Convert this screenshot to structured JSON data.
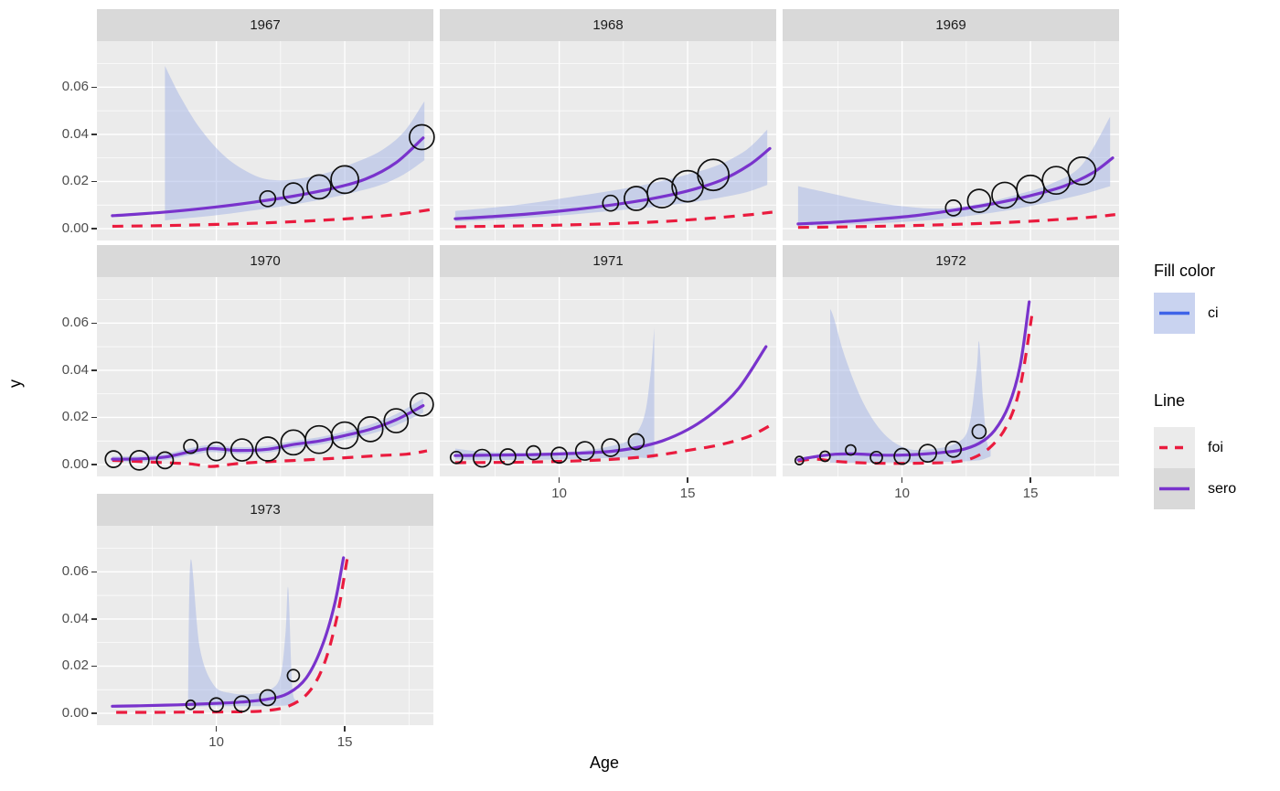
{
  "figure": {
    "y_axis_title": "y",
    "x_axis_title": "Age"
  },
  "legend": {
    "fill_title": "Fill color",
    "fill_items": [
      {
        "label": "ci"
      }
    ],
    "line_title": "Line",
    "line_items": [
      {
        "label": "foi",
        "style": "dashed"
      },
      {
        "label": "sero",
        "style": "solid"
      }
    ]
  },
  "colors": {
    "panel_bg": "#EBEBEB",
    "strip_bg": "#D9D9D9",
    "grid": "#FFFFFF",
    "ribbon_fill": "#A4B4E6",
    "ribbon_opacity": 0.5,
    "sero_line": "#7933CC",
    "foi_line": "#EA1B3E",
    "ci_legend_line": "#3E63E8",
    "point_stroke": "#101010",
    "axis_text": "#4D4D4D",
    "strip_text": "#1A1A1A"
  },
  "chart_data": {
    "type": "line",
    "subtype": "faceted-ribbon-line-bubble",
    "xlabel": "Age",
    "ylabel": "y",
    "x_domain": [
      5.35,
      18.45
    ],
    "y_domain": [
      -0.00503,
      0.07953
    ],
    "x_major_ticks": [
      10,
      15
    ],
    "x_tick_labels": [
      "10",
      "15"
    ],
    "x_minor_ticks": [
      7.5,
      12.5,
      17.5
    ],
    "y_major_ticks": [
      0.0,
      0.02,
      0.04,
      0.06
    ],
    "y_tick_labels": [
      "0.00",
      "0.02",
      "0.04",
      "0.06"
    ],
    "y_minor_ticks": [
      0.01,
      0.03,
      0.05,
      0.07
    ],
    "legend_position": "right",
    "grid": true,
    "facets": [
      {
        "facet": "1967",
        "row": 0,
        "col": 0,
        "show_x_axis": false,
        "show_y_axis": true,
        "ribbon": {
          "x": [
            8.0,
            8.6,
            9.4,
            10.4,
            11.5,
            12.4,
            13.4,
            14.4,
            15.4,
            16.4,
            17.3,
            18.1
          ],
          "top": [
            0.069,
            0.056,
            0.042,
            0.03,
            0.0225,
            0.0205,
            0.0215,
            0.024,
            0.028,
            0.033,
            0.041,
            0.054
          ],
          "bottom": [
            0.0035,
            0.0042,
            0.005,
            0.0062,
            0.0078,
            0.0092,
            0.011,
            0.013,
            0.0155,
            0.0185,
            0.023,
            0.029
          ]
        },
        "sero": {
          "x": [
            5.95,
            7,
            8.5,
            10,
            11.5,
            13,
            14.5,
            15.8,
            17,
            18.05
          ],
          "y": [
            0.0055,
            0.0062,
            0.0075,
            0.0092,
            0.0113,
            0.0138,
            0.017,
            0.021,
            0.028,
            0.0385
          ]
        },
        "foi": {
          "x": [
            5.95,
            8,
            10,
            12,
            14,
            15.5,
            17,
            18.3
          ],
          "y": [
            0.001,
            0.0013,
            0.0018,
            0.0025,
            0.0035,
            0.0045,
            0.006,
            0.008
          ]
        },
        "points": [
          [
            12,
            0.0127,
            8.5
          ],
          [
            13,
            0.0151,
            11
          ],
          [
            14,
            0.0177,
            13
          ],
          [
            15,
            0.0208,
            15
          ],
          [
            18,
            0.0388,
            13.5
          ]
        ]
      },
      {
        "facet": "1968",
        "row": 0,
        "col": 1,
        "show_x_axis": false,
        "show_y_axis": false,
        "ribbon": {
          "x": [
            5.95,
            7.5,
            9,
            10.5,
            12,
            13.5,
            15,
            16.2,
            17.3,
            18.1
          ],
          "top": [
            0.0075,
            0.009,
            0.011,
            0.0135,
            0.016,
            0.019,
            0.023,
            0.027,
            0.0335,
            0.042
          ],
          "bottom": [
            0.003,
            0.0038,
            0.0048,
            0.006,
            0.0075,
            0.009,
            0.011,
            0.013,
            0.0155,
            0.0185
          ]
        },
        "sero": {
          "x": [
            5.95,
            7.5,
            9,
            10.5,
            12,
            13.5,
            15,
            16.3,
            17.4,
            18.2
          ],
          "y": [
            0.0042,
            0.0052,
            0.0064,
            0.008,
            0.01,
            0.0125,
            0.016,
            0.0205,
            0.027,
            0.034
          ]
        },
        "foi": {
          "x": [
            5.95,
            8,
            10,
            12,
            14,
            16,
            17.5,
            18.3
          ],
          "y": [
            0.0008,
            0.0011,
            0.0015,
            0.0021,
            0.003,
            0.0045,
            0.006,
            0.007
          ]
        },
        "points": [
          [
            12,
            0.0108,
            8.5
          ],
          [
            13,
            0.0128,
            13
          ],
          [
            14,
            0.0151,
            16
          ],
          [
            15,
            0.018,
            17
          ],
          [
            16,
            0.0228,
            17
          ]
        ]
      },
      {
        "facet": "1969",
        "row": 0,
        "col": 2,
        "show_x_axis": false,
        "show_y_axis": false,
        "ribbon": {
          "x": [
            5.95,
            7,
            8.5,
            10,
            11.5,
            13,
            14.5,
            15.8,
            17,
            18.1
          ],
          "top": [
            0.018,
            0.0155,
            0.012,
            0.0095,
            0.0085,
            0.0105,
            0.0145,
            0.019,
            0.027,
            0.0475
          ],
          "bottom": [
            0.0012,
            0.0015,
            0.002,
            0.0028,
            0.004,
            0.006,
            0.0085,
            0.0115,
            0.0145,
            0.018
          ]
        },
        "sero": {
          "x": [
            5.95,
            7.5,
            9,
            10.5,
            12,
            13.5,
            15,
            16.3,
            17.4,
            18.2
          ],
          "y": [
            0.002,
            0.0028,
            0.004,
            0.0055,
            0.0078,
            0.0105,
            0.014,
            0.018,
            0.0235,
            0.03
          ]
        },
        "foi": {
          "x": [
            5.95,
            8,
            10,
            12,
            14,
            16,
            17.5,
            18.3
          ],
          "y": [
            0.0005,
            0.0008,
            0.0012,
            0.0018,
            0.0026,
            0.0038,
            0.005,
            0.006
          ]
        },
        "points": [
          [
            12,
            0.0088,
            8.5
          ],
          [
            13,
            0.0118,
            12.5
          ],
          [
            14,
            0.0142,
            14
          ],
          [
            15,
            0.0168,
            15
          ],
          [
            16,
            0.0205,
            15
          ],
          [
            17,
            0.0245,
            15
          ]
        ]
      },
      {
        "facet": "1970",
        "row": 1,
        "col": 0,
        "show_x_axis": false,
        "show_y_axis": true,
        "ribbon": {
          "x": [
            5.95,
            7,
            8,
            9,
            9.8,
            10.8,
            12,
            13,
            14,
            15,
            16,
            17,
            18.05
          ],
          "top": [
            0.0035,
            0.0036,
            0.0045,
            0.007,
            0.0083,
            0.0074,
            0.0079,
            0.01,
            0.0116,
            0.014,
            0.017,
            0.0214,
            0.028
          ],
          "bottom": [
            0.0011,
            0.0012,
            0.0019,
            0.004,
            0.0053,
            0.0046,
            0.0051,
            0.007,
            0.0084,
            0.0106,
            0.013,
            0.0166,
            0.022
          ]
        },
        "sero": {
          "x": [
            5.95,
            7,
            8,
            9,
            9.8,
            10.8,
            12,
            13,
            14,
            15,
            16,
            17,
            18.05
          ],
          "y": [
            0.0023,
            0.0024,
            0.0032,
            0.0055,
            0.0068,
            0.006,
            0.0065,
            0.0085,
            0.01,
            0.0123,
            0.015,
            0.019,
            0.025
          ]
        },
        "foi": {
          "x": [
            5.95,
            7,
            8.2,
            9,
            9.8,
            10.8,
            12,
            13.5,
            15,
            16.3,
            17.4,
            18.2
          ],
          "y": [
            0.0018,
            0.0013,
            0.0007,
            0.0003,
            -0.0008,
            0.0004,
            0.0012,
            0.002,
            0.0029,
            0.0038,
            0.0044,
            0.0058
          ]
        },
        "points": [
          [
            6,
            0.0023,
            9
          ],
          [
            7,
            0.0018,
            10.5
          ],
          [
            8,
            0.0018,
            9
          ],
          [
            9,
            0.0077,
            7.5
          ],
          [
            10,
            0.0056,
            10
          ],
          [
            11,
            0.0062,
            12
          ],
          [
            12,
            0.0066,
            13
          ],
          [
            13,
            0.0094,
            13.5
          ],
          [
            14,
            0.0106,
            15
          ],
          [
            15,
            0.0124,
            14.5
          ],
          [
            16,
            0.015,
            13.5
          ],
          [
            17,
            0.0186,
            13
          ],
          [
            18,
            0.0255,
            12.5
          ]
        ]
      },
      {
        "facet": "1971",
        "row": 1,
        "col": 1,
        "show_x_axis": true,
        "show_y_axis": false,
        "ribbon": {
          "x": [
            5.95,
            7,
            8.5,
            10,
            11,
            12,
            12.8,
            13.3,
            13.55,
            13.7
          ],
          "top": [
            0.0068,
            0.0055,
            0.005,
            0.0053,
            0.006,
            0.0078,
            0.011,
            0.02,
            0.038,
            0.058
          ],
          "bottom": [
            0.0022,
            0.002,
            0.002,
            0.0022,
            0.0025,
            0.0028,
            0.003,
            0.0028,
            0.0026,
            0.0025
          ]
        },
        "sero": {
          "x": [
            5.95,
            7.5,
            9,
            10.5,
            12,
            13,
            14,
            15,
            16,
            17,
            18.05
          ],
          "y": [
            0.0038,
            0.004,
            0.0042,
            0.0047,
            0.0056,
            0.0072,
            0.01,
            0.0148,
            0.022,
            0.0325,
            0.05
          ]
        },
        "foi": {
          "x": [
            5.95,
            7.5,
            9,
            10.5,
            12,
            13.5,
            15,
            16.3,
            17.4,
            18.25
          ],
          "y": [
            0.0008,
            0.0009,
            0.0011,
            0.0015,
            0.0022,
            0.0035,
            0.006,
            0.0085,
            0.012,
            0.0168
          ]
        },
        "points": [
          [
            6,
            0.003,
            6.5
          ],
          [
            7,
            0.0027,
            9.5
          ],
          [
            8,
            0.0033,
            8.5
          ],
          [
            9,
            0.005,
            7.5
          ],
          [
            10,
            0.004,
            8.5
          ],
          [
            11,
            0.0058,
            10
          ],
          [
            12,
            0.0072,
            9.5
          ],
          [
            13,
            0.0097,
            8.5
          ]
        ]
      },
      {
        "facet": "1972",
        "row": 1,
        "col": 2,
        "show_x_axis": true,
        "show_y_axis": false,
        "ribbon": {
          "x": [
            7.2,
            7.35,
            7.8,
            8.5,
            9.3,
            10.2,
            11.2,
            12.1,
            12.6,
            12.9,
            13.0,
            13.15,
            13.3,
            13.45
          ],
          "top": [
            0.066,
            0.062,
            0.045,
            0.026,
            0.013,
            0.0068,
            0.0066,
            0.009,
            0.016,
            0.04,
            0.052,
            0.028,
            0.01,
            0.0068
          ],
          "bottom": [
            0.0008,
            0.0008,
            0.0008,
            0.0008,
            0.0009,
            0.001,
            0.0011,
            0.0013,
            0.0015,
            0.0017,
            0.0018,
            0.0022,
            0.0028,
            0.0035
          ]
        },
        "sero": {
          "x": [
            5.95,
            6.6,
            7.4,
            8.2,
            9.2,
            10.2,
            11.2,
            12.2,
            13,
            13.6,
            14.15,
            14.6,
            14.95
          ],
          "y": [
            0.002,
            0.0033,
            0.0044,
            0.0045,
            0.004,
            0.0041,
            0.0048,
            0.006,
            0.009,
            0.0145,
            0.025,
            0.042,
            0.069
          ]
        },
        "foi": {
          "x": [
            5.95,
            6.6,
            7.5,
            8.5,
            9.5,
            10.7,
            12,
            12.8,
            13.5,
            14.1,
            14.6,
            15.05
          ],
          "y": [
            0.0015,
            0.0023,
            0.0013,
            0.0007,
            0.0005,
            0.0006,
            0.0011,
            0.003,
            0.008,
            0.017,
            0.033,
            0.063
          ]
        },
        "points": [
          [
            6,
            0.0017,
            4.5
          ],
          [
            7,
            0.0035,
            5.5
          ],
          [
            8,
            0.0062,
            5.5
          ],
          [
            9,
            0.003,
            6.5
          ],
          [
            10,
            0.0035,
            8.5
          ],
          [
            11,
            0.0048,
            9.5
          ],
          [
            12,
            0.0065,
            8.5
          ],
          [
            13,
            0.014,
            7.5
          ]
        ]
      },
      {
        "facet": "1973",
        "row": 2,
        "col": 0,
        "show_x_axis": true,
        "show_y_axis": true,
        "ribbon": {
          "x": [
            8.9,
            9.0,
            9.35,
            9.9,
            10.6,
            11.4,
            12.1,
            12.5,
            12.7,
            12.8,
            12.95,
            13.1
          ],
          "top": [
            0.004,
            0.065,
            0.028,
            0.012,
            0.0085,
            0.0082,
            0.01,
            0.016,
            0.035,
            0.053,
            0.012,
            0.0055
          ],
          "bottom": [
            0.0028,
            0.0028,
            0.0029,
            0.003,
            0.003,
            0.003,
            0.0031,
            0.0032,
            0.0033,
            0.0034,
            0.0036,
            0.0038
          ]
        },
        "sero": {
          "x": [
            5.95,
            7,
            8.5,
            10,
            11,
            12,
            12.8,
            13.5,
            14.1,
            14.6,
            14.95
          ],
          "y": [
            0.003,
            0.0032,
            0.0036,
            0.0042,
            0.0048,
            0.006,
            0.0085,
            0.015,
            0.028,
            0.046,
            0.066
          ]
        },
        "foi": {
          "x": [
            6.1,
            7.5,
            9,
            10.5,
            11.8,
            12.8,
            13.6,
            14.2,
            14.7,
            15.1
          ],
          "y": [
            0.0004,
            0.0004,
            0.0005,
            0.0006,
            0.001,
            0.003,
            0.009,
            0.021,
            0.041,
            0.066
          ]
        },
        "points": [
          [
            9,
            0.0036,
            5
          ],
          [
            10,
            0.0036,
            7.5
          ],
          [
            11,
            0.004,
            8.5
          ],
          [
            12,
            0.0066,
            8.5
          ],
          [
            13,
            0.016,
            6.5
          ]
        ]
      }
    ]
  }
}
